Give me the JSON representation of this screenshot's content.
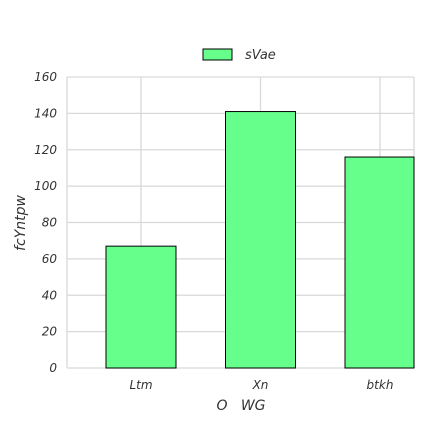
{
  "chart_data": {
    "type": "bar",
    "categories": [
      "Ltm",
      "Xn",
      "btkh"
    ],
    "series": [
      {
        "name": "sVae",
        "values": [
          67,
          141,
          116
        ]
      }
    ],
    "xlabel": "O   WG",
    "ylabel": "fcYntpw",
    "ylim": [
      0,
      160
    ],
    "yticks": [
      0,
      20,
      40,
      60,
      80,
      100,
      120,
      140,
      160
    ],
    "grid": true,
    "legend": "top-center",
    "colors": {
      "bar": "#66ff8c",
      "bar_edge": "#000000",
      "grid": "#d9d9d9"
    }
  }
}
